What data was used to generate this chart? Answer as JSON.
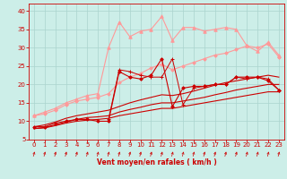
{
  "background_color": "#cceee8",
  "grid_color": "#aad4ce",
  "xlabel": "Vent moyen/en rafales ( km/h )",
  "xlabel_color": "#cc0000",
  "xlabel_fontsize": 5.5,
  "tick_color": "#cc0000",
  "tick_fontsize": 5,
  "ylim": [
    5,
    42
  ],
  "xlim": [
    -0.5,
    23.5
  ],
  "yticks": [
    5,
    10,
    15,
    20,
    25,
    30,
    35,
    40
  ],
  "xticks": [
    0,
    1,
    2,
    3,
    4,
    5,
    6,
    7,
    8,
    9,
    10,
    11,
    12,
    13,
    14,
    15,
    16,
    17,
    18,
    19,
    20,
    21,
    22,
    23
  ],
  "series": [
    {
      "x": [
        0,
        1,
        2,
        3,
        4,
        5,
        6,
        7,
        8,
        9,
        10,
        11,
        12,
        13,
        14,
        15,
        16,
        17,
        18,
        19,
        20,
        21,
        22,
        23
      ],
      "y": [
        8.5,
        8.5,
        9.5,
        10.0,
        10.5,
        10.5,
        10.0,
        10.0,
        23.5,
        22.0,
        21.5,
        22.5,
        27.0,
        14.0,
        19.0,
        19.5,
        19.5,
        20.0,
        20.0,
        22.0,
        22.0,
        22.0,
        21.0,
        18.5
      ],
      "color": "#cc0000",
      "lw": 0.8,
      "marker": "D",
      "markersize": 1.8,
      "zorder": 5
    },
    {
      "x": [
        0,
        1,
        2,
        3,
        4,
        5,
        6,
        7,
        8,
        9,
        10,
        11,
        12,
        13,
        14,
        15,
        16,
        17,
        18,
        19,
        20,
        21,
        22,
        23
      ],
      "y": [
        8.0,
        8.2,
        8.8,
        9.5,
        10.0,
        10.3,
        10.5,
        10.8,
        11.5,
        12.0,
        12.5,
        13.0,
        13.5,
        13.5,
        14.0,
        14.5,
        15.0,
        15.5,
        16.0,
        16.5,
        17.0,
        17.5,
        18.0,
        18.0
      ],
      "color": "#cc0000",
      "lw": 0.8,
      "marker": null,
      "markersize": 0,
      "zorder": 4
    },
    {
      "x": [
        0,
        1,
        2,
        3,
        4,
        5,
        6,
        7,
        8,
        9,
        10,
        11,
        12,
        13,
        14,
        15,
        16,
        17,
        18,
        19,
        20,
        21,
        22,
        23
      ],
      "y": [
        8.0,
        8.3,
        9.0,
        9.8,
        10.5,
        11.0,
        11.2,
        11.5,
        12.5,
        13.2,
        13.8,
        14.5,
        15.0,
        15.0,
        15.5,
        16.0,
        16.5,
        17.2,
        17.8,
        18.5,
        19.0,
        19.5,
        20.0,
        20.0
      ],
      "color": "#cc0000",
      "lw": 0.8,
      "marker": null,
      "markersize": 0,
      "zorder": 4
    },
    {
      "x": [
        0,
        1,
        2,
        3,
        4,
        5,
        6,
        7,
        8,
        9,
        10,
        11,
        12,
        13,
        14,
        15,
        16,
        17,
        18,
        19,
        20,
        21,
        22,
        23
      ],
      "y": [
        8.5,
        9.0,
        9.8,
        10.8,
        11.5,
        12.0,
        12.5,
        13.0,
        14.0,
        15.0,
        15.8,
        16.5,
        17.2,
        17.0,
        17.5,
        18.2,
        19.0,
        19.8,
        20.5,
        21.0,
        21.5,
        22.0,
        22.5,
        22.0
      ],
      "color": "#cc0000",
      "lw": 0.8,
      "marker": null,
      "markersize": 0,
      "zorder": 4
    },
    {
      "x": [
        7,
        8,
        9,
        10,
        11,
        12,
        13,
        14,
        15,
        16,
        17,
        18,
        19,
        20,
        21,
        22,
        23
      ],
      "y": [
        10.5,
        24.0,
        23.5,
        22.5,
        22.0,
        22.0,
        27.0,
        14.5,
        19.0,
        19.5,
        20.0,
        20.0,
        22.0,
        21.5,
        22.0,
        21.5,
        18.5
      ],
      "color": "#cc0000",
      "lw": 0.7,
      "marker": "+",
      "markersize": 3.5,
      "zorder": 6
    },
    {
      "x": [
        0,
        1,
        2,
        3,
        4,
        5,
        6,
        7,
        8,
        9,
        10,
        11,
        12,
        13,
        14,
        15,
        16,
        17,
        18,
        19,
        20,
        21,
        22,
        23
      ],
      "y": [
        11.5,
        12.0,
        13.0,
        14.5,
        15.5,
        16.0,
        16.5,
        17.5,
        20.5,
        22.0,
        23.0,
        24.5,
        25.5,
        24.0,
        25.0,
        26.0,
        27.0,
        28.0,
        28.5,
        29.5,
        30.5,
        30.0,
        31.0,
        27.5
      ],
      "color": "#ff9999",
      "lw": 0.8,
      "marker": "D",
      "markersize": 1.8,
      "zorder": 3
    },
    {
      "x": [
        0,
        1,
        2,
        3,
        4,
        5,
        6,
        7,
        8,
        9,
        10,
        11,
        12,
        13,
        14,
        15,
        16,
        17,
        18,
        19,
        20,
        21,
        22,
        23
      ],
      "y": [
        11.5,
        12.5,
        13.5,
        15.0,
        16.0,
        17.0,
        17.5,
        30.0,
        37.0,
        33.0,
        34.5,
        35.0,
        38.5,
        32.0,
        35.5,
        35.5,
        34.5,
        35.0,
        35.5,
        35.0,
        30.5,
        29.0,
        31.5,
        28.0
      ],
      "color": "#ff9999",
      "lw": 0.8,
      "marker": "^",
      "markersize": 2.5,
      "zorder": 3
    }
  ],
  "arrow_color": "#cc0000"
}
